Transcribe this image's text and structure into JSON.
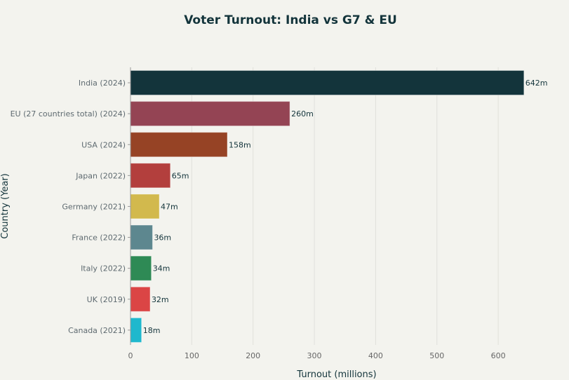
{
  "chart_data": {
    "type": "bar",
    "orientation": "horizontal",
    "title": "Voter Turnout: India vs G7 & EU",
    "xlabel": "Turnout (millions)",
    "ylabel": "Country (Year)",
    "xlim": [
      0,
      642
    ],
    "xticks": [
      0,
      100,
      200,
      300,
      400,
      500,
      600
    ],
    "grid": true,
    "categories": [
      "India (2024)",
      "EU (27 countries total) (2024)",
      "USA (2024)",
      "Japan (2022)",
      "Germany (2021)",
      "France (2022)",
      "Italy (2022)",
      "UK (2019)",
      "Canada (2021)"
    ],
    "values": [
      642,
      260,
      158,
      65,
      47,
      36,
      34,
      32,
      18
    ],
    "data_labels": [
      "642m",
      "260m",
      "158m",
      "65m",
      "47m",
      "36m",
      "34m",
      "32m",
      "18m"
    ],
    "colors": [
      "#13343b",
      "#944454",
      "#964325",
      "#b33f3d",
      "#d2b94d",
      "#5d878f",
      "#2e8a55",
      "#db4545",
      "#1fb8cd"
    ]
  }
}
